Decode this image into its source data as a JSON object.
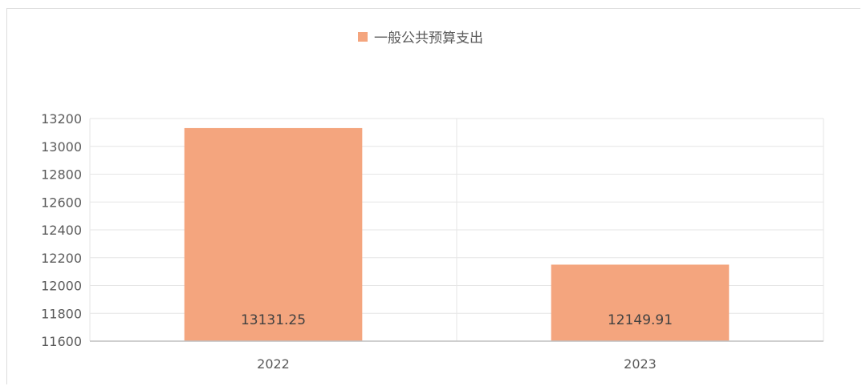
{
  "chart_data": {
    "type": "bar",
    "title": "",
    "xlabel": "",
    "ylabel": "",
    "categories": [
      "2022",
      "2023"
    ],
    "series": [
      {
        "name": "一般公共预算支出",
        "values": [
          13131.25,
          12149.91
        ],
        "data_labels": [
          "13131.25",
          "12149.91"
        ],
        "color": "#f4a57e"
      }
    ],
    "ylim": [
      11600,
      13200
    ],
    "yticks": [
      "11600",
      "11800",
      "12000",
      "12200",
      "12400",
      "12600",
      "12800",
      "13000",
      "13200"
    ],
    "grid": true,
    "legend_position": "top-center",
    "colors": {
      "bar": "#f4a57e",
      "grid": "#e6e6e6",
      "axis": "#bfbfbf",
      "text": "#595959"
    }
  }
}
